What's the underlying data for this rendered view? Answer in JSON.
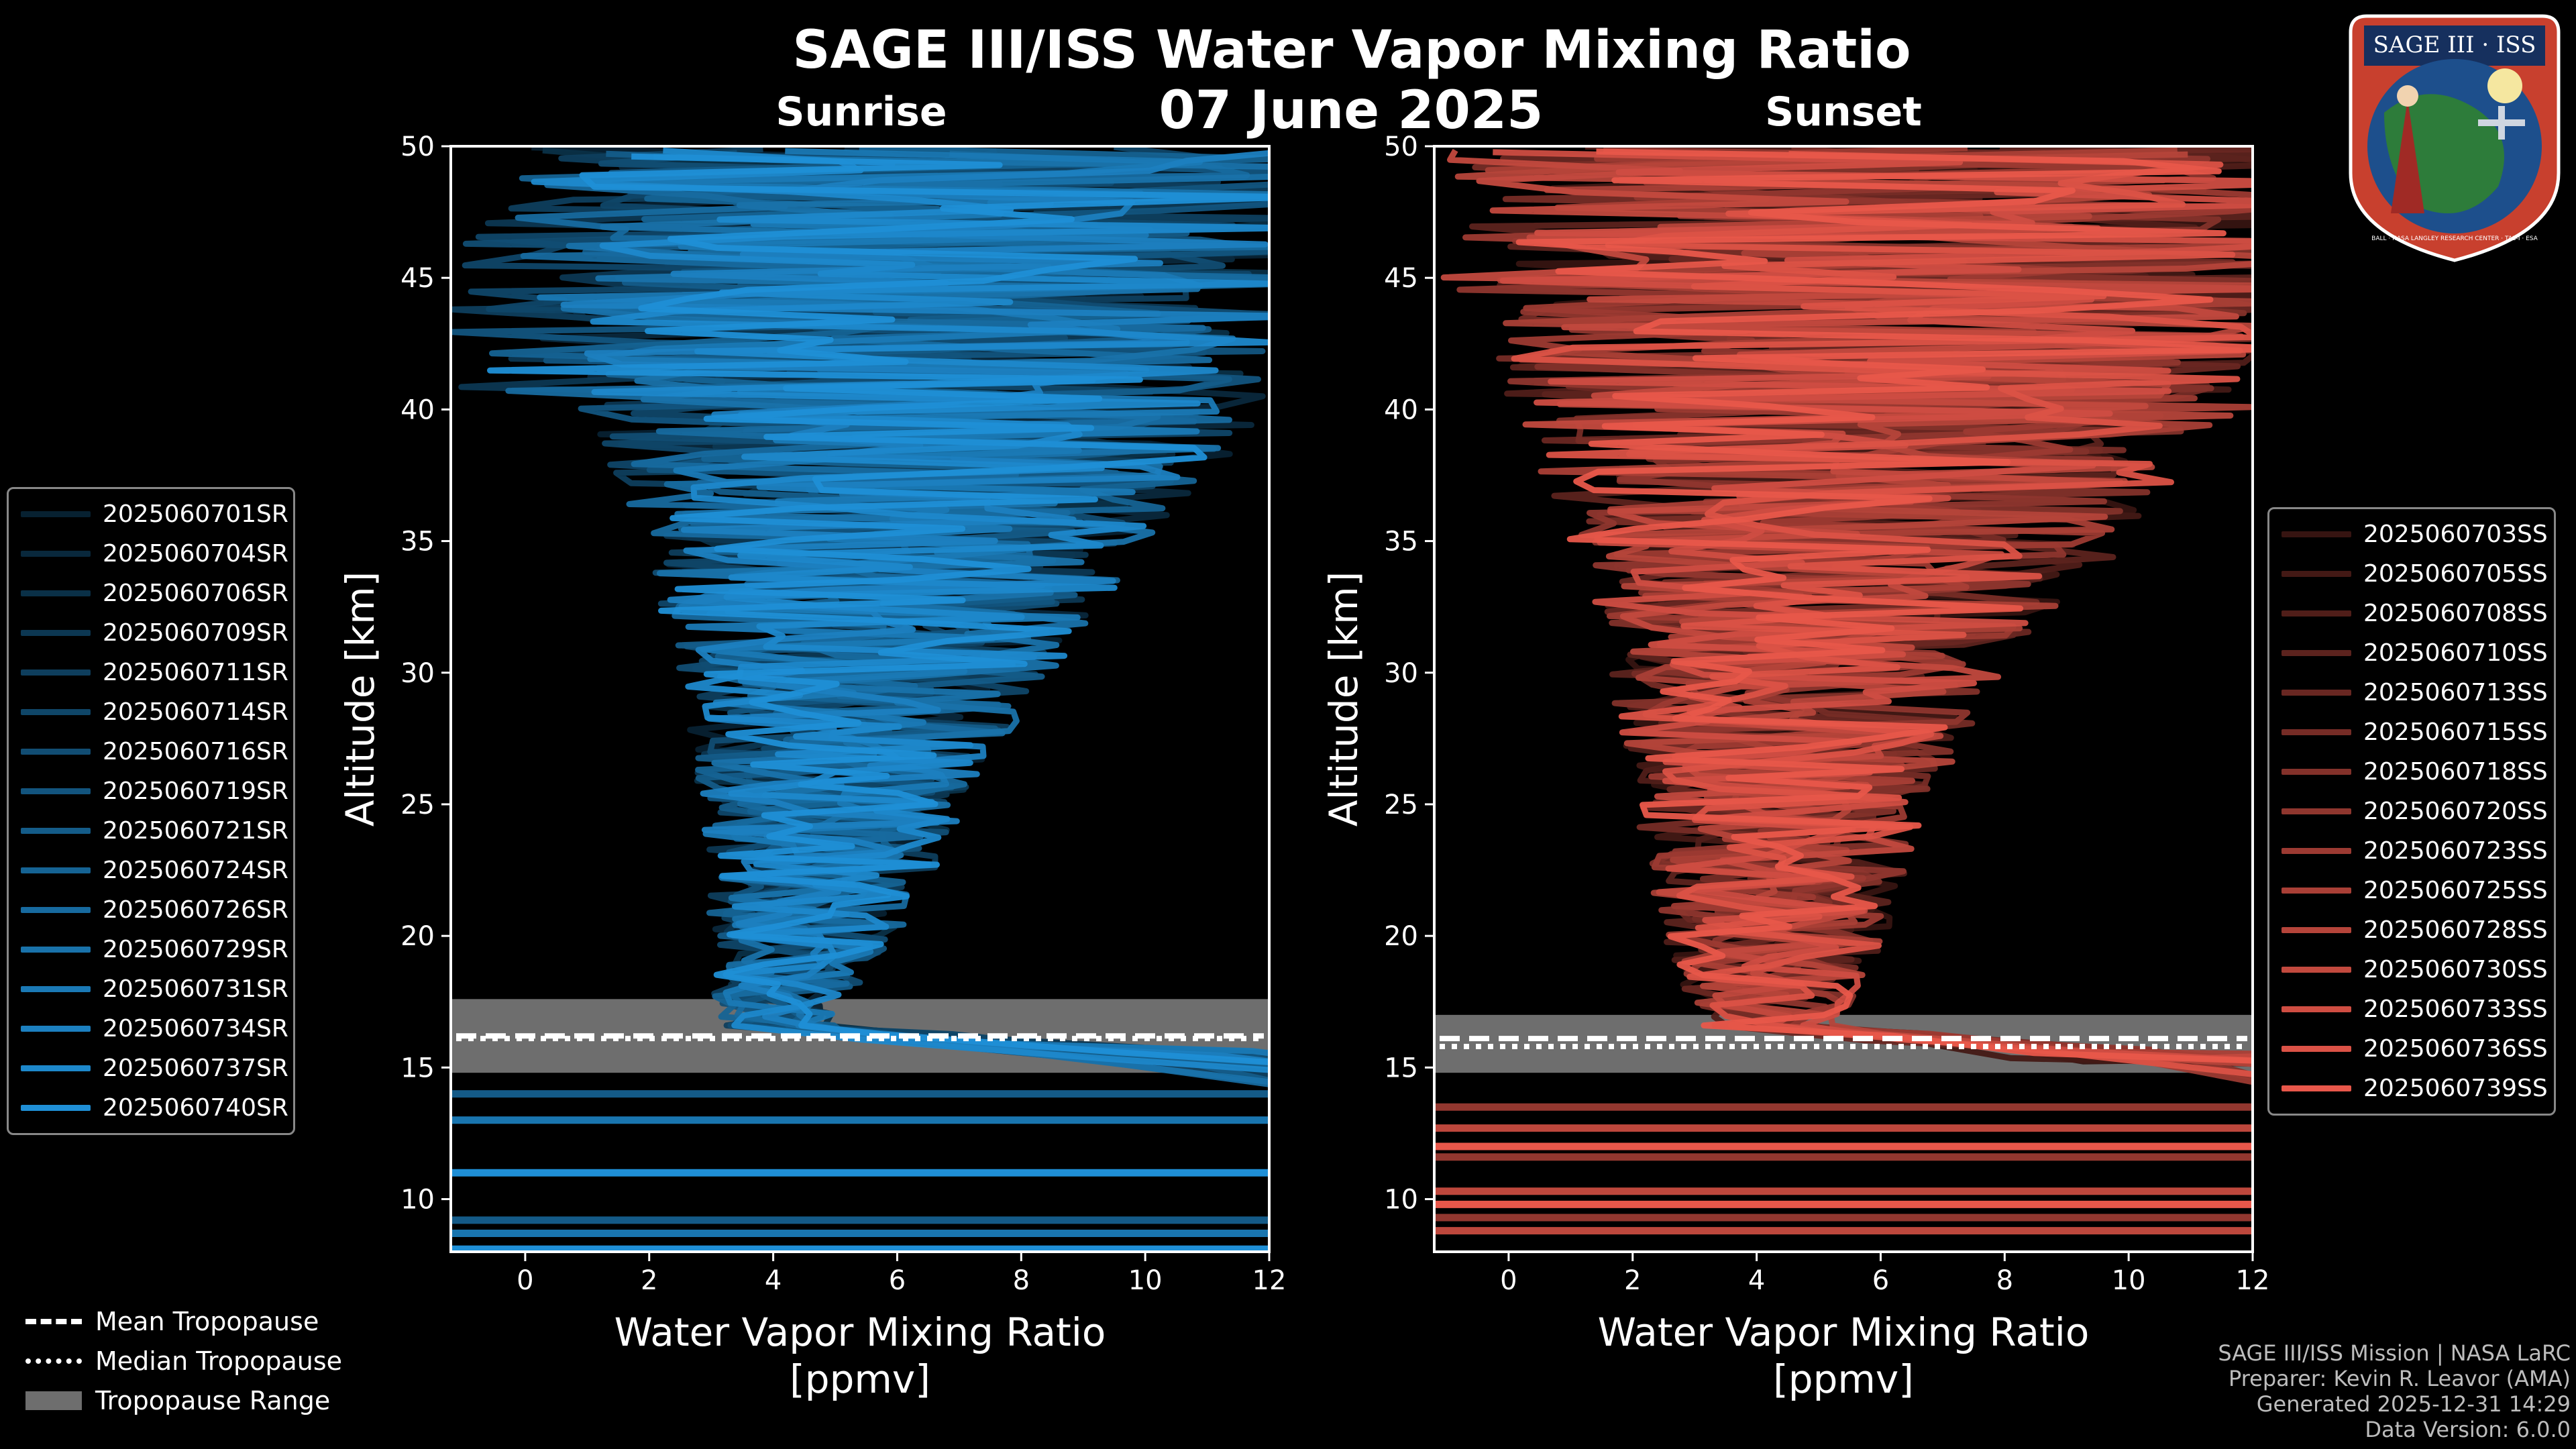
{
  "title": "SAGE III/ISS Water Vapor Mixing Ratio",
  "date": "07 June 2025",
  "logo": {
    "mission": "SAGE III · ISS",
    "ring_text": "BALL · NASA LANGLEY RESEARCH CENTER · TAS-I · ESA"
  },
  "colors": {
    "sunrise": "#1f8fd6",
    "sunset": "#e8574a",
    "tropopause_fill": "#6e6e6e"
  },
  "legend_tropopause": [
    {
      "label": "Mean Tropopause",
      "style": "dashed"
    },
    {
      "label": "Median Tropopause",
      "style": "dotted"
    },
    {
      "label": "Tropopause Range",
      "style": "fill"
    }
  ],
  "footer": [
    "SAGE III/ISS Mission | NASA LaRC",
    "Preparer: Kevin R. Leavor (AMA)",
    "Generated 2025-12-31 14:29",
    "Data Version: 6.0.0"
  ],
  "chart_data": [
    {
      "type": "line",
      "subtitle": "Sunrise",
      "xlabel": "Water Vapor Mixing Ratio\n[ppmv]",
      "ylabel": "Altitude [km]",
      "xlim": [
        -1.2,
        12
      ],
      "ylim": [
        8,
        50
      ],
      "xticks": [
        0,
        2,
        4,
        6,
        8,
        10,
        12
      ],
      "yticks": [
        10,
        15,
        20,
        25,
        30,
        35,
        40,
        45,
        50
      ],
      "tropopause": {
        "mean": 16.2,
        "median": 16.1,
        "min": 14.8,
        "max": 17.6
      },
      "series_names": [
        "2025060701SR",
        "2025060704SR",
        "2025060706SR",
        "2025060709SR",
        "2025060711SR",
        "2025060714SR",
        "2025060716SR",
        "2025060719SR",
        "2025060721SR",
        "2025060724SR",
        "2025060726SR",
        "2025060729SR",
        "2025060731SR",
        "2025060734SR",
        "2025060737SR",
        "2025060740SR"
      ],
      "profile_envelope": {
        "altitude": [
          17,
          20,
          25,
          30,
          35,
          40,
          45,
          50
        ],
        "center": [
          4.0,
          4.5,
          5.0,
          5.5,
          6.0,
          6.5,
          6.5,
          6.5
        ],
        "spread": [
          1.0,
          1.5,
          2.2,
          3.0,
          4.2,
          5.5,
          6.5,
          7.0
        ]
      },
      "low_altitude_lines": [
        14.0,
        13.0,
        11.0,
        9.2,
        8.7,
        8.1
      ]
    },
    {
      "type": "line",
      "subtitle": "Sunset",
      "xlabel": "Water Vapor Mixing Ratio\n[ppmv]",
      "ylabel": "Altitude [km]",
      "xlim": [
        -1.2,
        12
      ],
      "ylim": [
        8,
        50
      ],
      "xticks": [
        0,
        2,
        4,
        6,
        8,
        10,
        12
      ],
      "yticks": [
        10,
        15,
        20,
        25,
        30,
        35,
        40,
        45,
        50
      ],
      "tropopause": {
        "mean": 16.1,
        "median": 15.8,
        "min": 14.8,
        "max": 17.0
      },
      "series_names": [
        "2025060703SS",
        "2025060705SS",
        "2025060708SS",
        "2025060710SS",
        "2025060713SS",
        "2025060715SS",
        "2025060718SS",
        "2025060720SS",
        "2025060723SS",
        "2025060725SS",
        "2025060728SS",
        "2025060730SS",
        "2025060733SS",
        "2025060736SS",
        "2025060739SS"
      ],
      "profile_envelope": {
        "altitude": [
          17,
          20,
          25,
          30,
          35,
          40,
          45,
          50
        ],
        "center": [
          4.2,
          4.3,
          4.4,
          4.8,
          5.5,
          6.0,
          6.5,
          6.5
        ],
        "spread": [
          1.2,
          1.8,
          2.4,
          3.2,
          4.5,
          6.0,
          7.0,
          7.5
        ]
      },
      "low_altitude_lines": [
        13.5,
        12.7,
        12.0,
        11.6,
        10.3,
        9.8,
        9.3,
        8.8
      ]
    }
  ]
}
